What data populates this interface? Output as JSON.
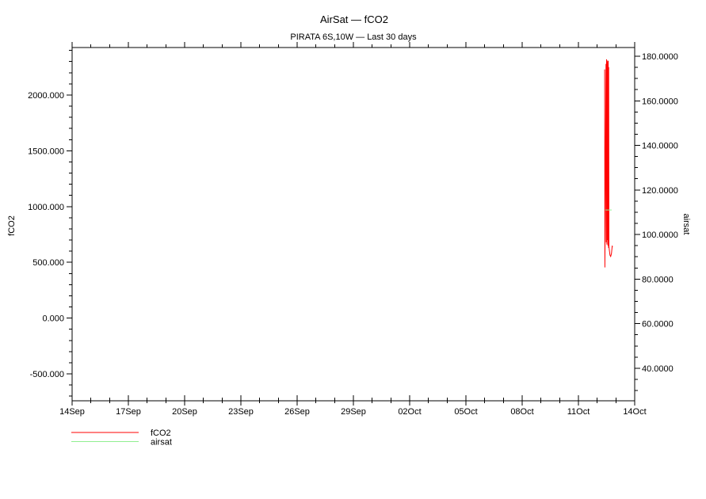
{
  "chart_data": {
    "type": "line",
    "title": "AirSat — fCO2",
    "subtitle": "PIRATA 6S,10W — Last 30 days",
    "background": "#ffffff",
    "axis_color": "#000000",
    "grid": false,
    "x_axis": {
      "xlim_days": [
        0,
        30
      ],
      "minor_step_days": 1,
      "major_step_days": 3,
      "major_ticks": [
        {
          "day": 0,
          "label": "14Sep"
        },
        {
          "day": 3,
          "label": "17Sep"
        },
        {
          "day": 6,
          "label": "20Sep"
        },
        {
          "day": 9,
          "label": "23Sep"
        },
        {
          "day": 12,
          "label": "26Sep"
        },
        {
          "day": 15,
          "label": "29Sep"
        },
        {
          "day": 18,
          "label": "02Oct"
        },
        {
          "day": 21,
          "label": "05Oct"
        },
        {
          "day": 24,
          "label": "08Oct"
        },
        {
          "day": 27,
          "label": "11Oct"
        },
        {
          "day": 30,
          "label": "14Oct"
        }
      ]
    },
    "y_left": {
      "label": "fCO2",
      "ylim": [
        -741,
        2426
      ],
      "minor_step": 100,
      "major_step": 500,
      "major_ticks": [
        {
          "v": 2000,
          "label": "2000.000"
        },
        {
          "v": 1500,
          "label": "1500.000"
        },
        {
          "v": 1000,
          "label": "1000.000"
        },
        {
          "v": 500,
          "label": "500.000"
        },
        {
          "v": 0,
          "label": "0.000"
        },
        {
          "v": -500,
          "label": "-500.000"
        }
      ]
    },
    "y_right": {
      "label": "airsat",
      "ylim": [
        25.4,
        183.9
      ],
      "minor_step": 5,
      "major_step": 20,
      "major_ticks": [
        {
          "v": 180,
          "label": "180.0000"
        },
        {
          "v": 160,
          "label": "160.0000"
        },
        {
          "v": 140,
          "label": "140.0000"
        },
        {
          "v": 120,
          "label": "120.0000"
        },
        {
          "v": 100,
          "label": "100.0000"
        },
        {
          "v": 80,
          "label": "80.0000"
        },
        {
          "v": 60,
          "label": "60.0000"
        },
        {
          "v": 40,
          "label": "40.0000"
        }
      ]
    },
    "series": [
      {
        "name": "fCO2",
        "axis": "left",
        "color": "#ff0000",
        "points": [
          [
            28.4,
            2230
          ],
          [
            28.41,
            455
          ],
          [
            28.47,
            2280
          ],
          [
            28.485,
            680
          ],
          [
            28.5,
            2320
          ],
          [
            28.515,
            660
          ],
          [
            28.53,
            2300
          ],
          [
            28.545,
            700
          ],
          [
            28.56,
            2310
          ],
          [
            28.575,
            650
          ],
          [
            28.59,
            2305
          ],
          [
            28.605,
            630
          ],
          [
            28.615,
            2250
          ],
          [
            28.625,
            640
          ],
          [
            28.68,
            565
          ],
          [
            28.72,
            553
          ],
          [
            28.76,
            580
          ],
          [
            28.8,
            645
          ],
          [
            28.83,
            640
          ]
        ]
      },
      {
        "name": "airsat",
        "axis": "right",
        "color": "#90ee90",
        "points": [
          [
            28.43,
            111
          ],
          [
            28.77,
            111
          ]
        ]
      }
    ],
    "legend": [
      {
        "label": "fCO2",
        "color": "#ff0000"
      },
      {
        "label": "airsat",
        "color": "#90ee90"
      }
    ]
  }
}
